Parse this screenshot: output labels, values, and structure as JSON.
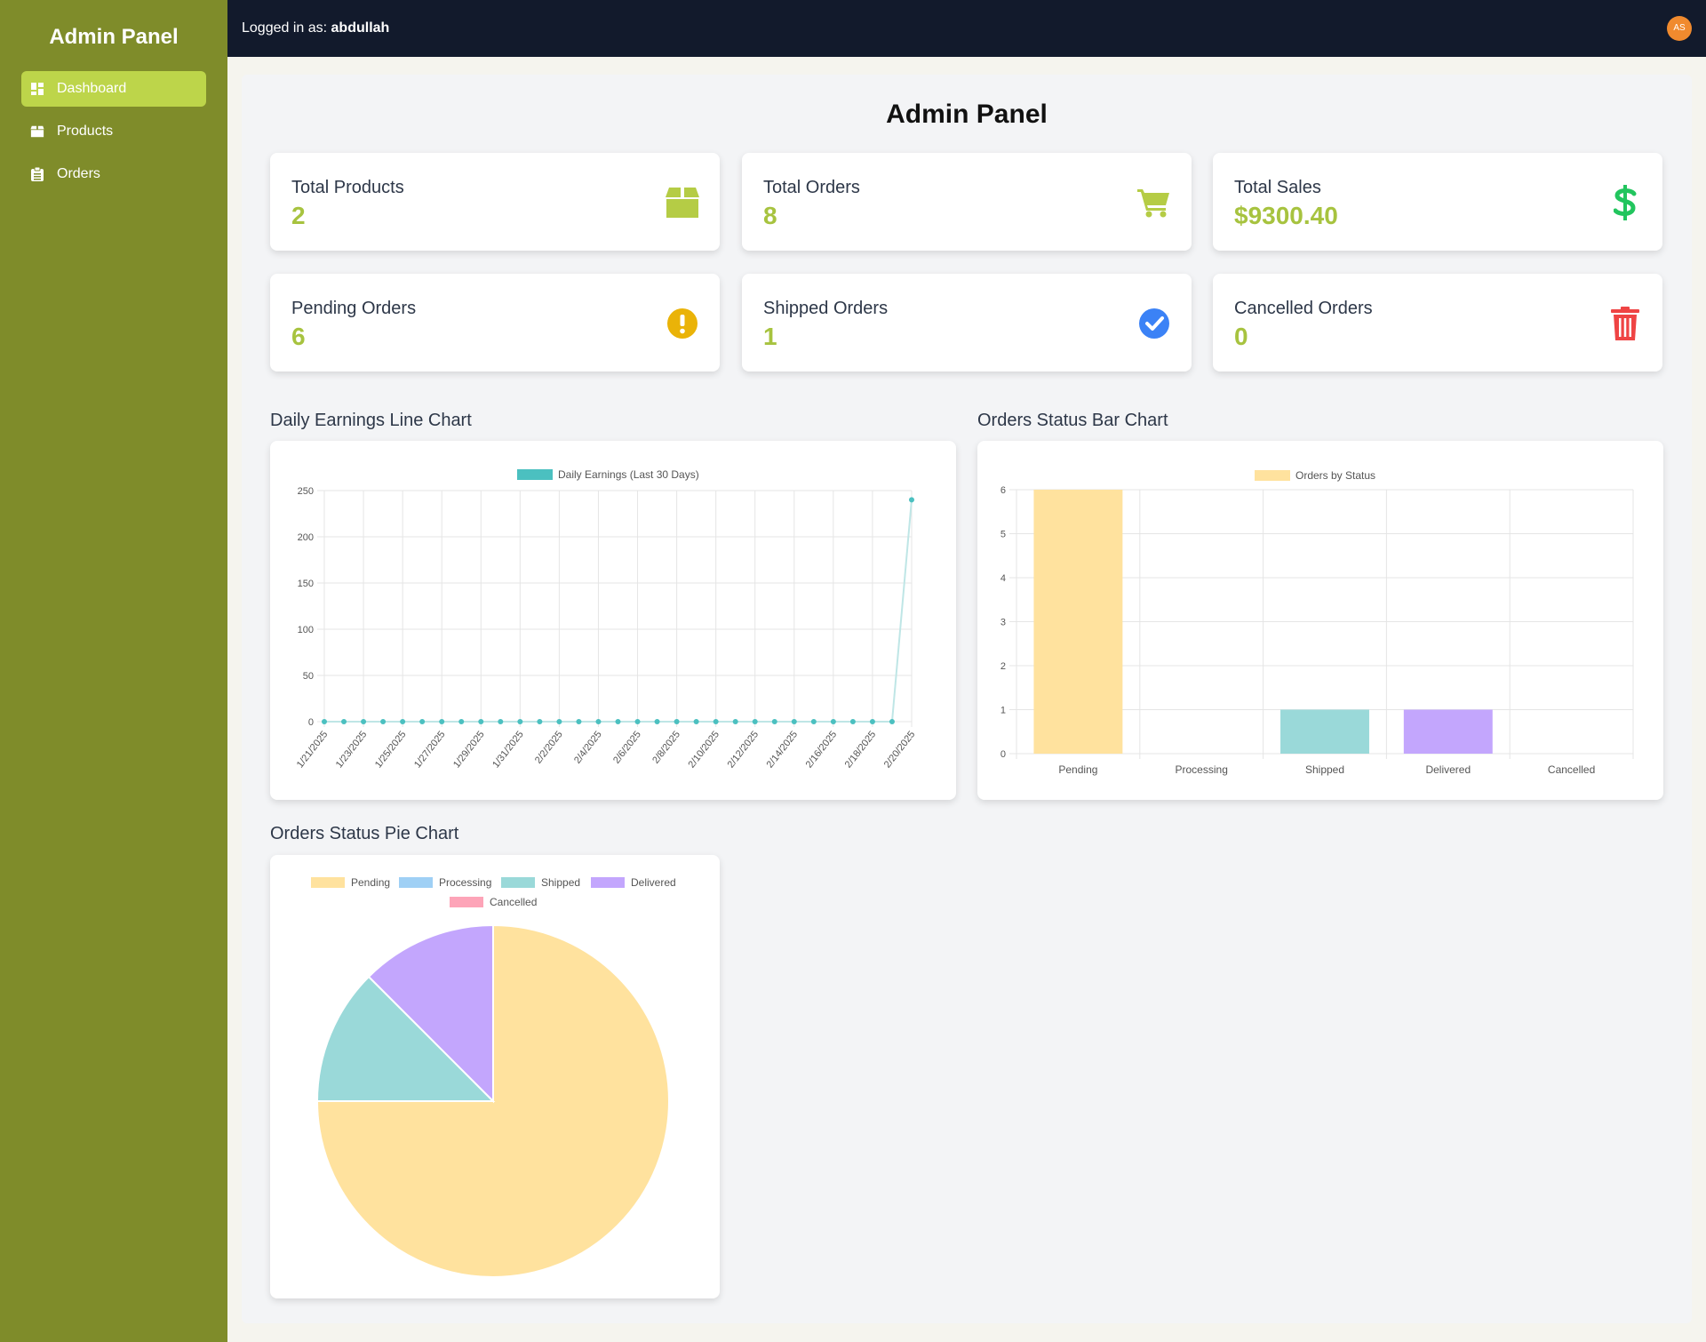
{
  "sidebar": {
    "brand": "Admin Panel",
    "items": [
      {
        "label": "Dashboard",
        "icon": "dashboard-icon",
        "active": true
      },
      {
        "label": "Products",
        "icon": "box-icon",
        "active": false
      },
      {
        "label": "Orders",
        "icon": "clipboard-icon",
        "active": false
      }
    ]
  },
  "topbar": {
    "logged_in_prefix": "Logged in as:",
    "username": "abdullah",
    "avatar_initials": "AS"
  },
  "main": {
    "title": "Admin Panel"
  },
  "stats": [
    {
      "label": "Total Products",
      "value": "2",
      "icon": "box-icon",
      "color": "#b5cc45"
    },
    {
      "label": "Total Orders",
      "value": "8",
      "icon": "cart-icon",
      "color": "#b5cc45"
    },
    {
      "label": "Total Sales",
      "value": "$9300.40",
      "icon": "dollar-icon",
      "color": "#22c55e"
    },
    {
      "label": "Pending Orders",
      "value": "6",
      "icon": "exclamation-icon",
      "color": "#eab308"
    },
    {
      "label": "Shipped Orders",
      "value": "1",
      "icon": "check-circle-icon",
      "color": "#3b82f6"
    },
    {
      "label": "Cancelled Orders",
      "value": "0",
      "icon": "trash-icon",
      "color": "#ef4444"
    }
  ],
  "sections": {
    "line_title": "Daily Earnings Line Chart",
    "bar_title": "Orders Status Bar Chart",
    "pie_title": "Orders Status Pie Chart"
  },
  "colors": {
    "sidebar": "#7f8c2a",
    "active": "#bdd54a",
    "topbar": "#121a2c",
    "accent_value": "#a7c33f"
  },
  "chart_data": [
    {
      "type": "line",
      "legend": "Daily Earnings (Last 30 Days)",
      "x": [
        "1/21/2025",
        "1/22/2025",
        "1/23/2025",
        "1/24/2025",
        "1/25/2025",
        "1/26/2025",
        "1/27/2025",
        "1/28/2025",
        "1/29/2025",
        "1/30/2025",
        "1/31/2025",
        "2/1/2025",
        "2/2/2025",
        "2/3/2025",
        "2/4/2025",
        "2/5/2025",
        "2/6/2025",
        "2/7/2025",
        "2/8/2025",
        "2/9/2025",
        "2/10/2025",
        "2/11/2025",
        "2/12/2025",
        "2/13/2025",
        "2/14/2025",
        "2/15/2025",
        "2/16/2025",
        "2/17/2025",
        "2/18/2025",
        "2/19/2025",
        "2/20/2025"
      ],
      "tick_labels": [
        "1/21/2025",
        "1/23/2025",
        "1/25/2025",
        "1/27/2025",
        "1/29/2025",
        "1/31/2025",
        "2/2/2025",
        "2/4/2025",
        "2/6/2025",
        "2/8/2025",
        "2/10/2025",
        "2/12/2025",
        "2/14/2025",
        "2/16/2025",
        "2/18/2025",
        "2/20/2025"
      ],
      "values": [
        0,
        0,
        0,
        0,
        0,
        0,
        0,
        0,
        0,
        0,
        0,
        0,
        0,
        0,
        0,
        0,
        0,
        0,
        0,
        0,
        0,
        0,
        0,
        0,
        0,
        0,
        0,
        0,
        0,
        0,
        240
      ],
      "yticks": [
        0,
        50,
        100,
        150,
        200,
        250
      ],
      "ylim": [
        0,
        250
      ],
      "color": "#4bc0c0",
      "grid": true,
      "legend_position": "top"
    },
    {
      "type": "bar",
      "legend": "Orders by Status",
      "categories": [
        "Pending",
        "Processing",
        "Shipped",
        "Delivered",
        "Cancelled"
      ],
      "values": [
        6,
        0,
        1,
        1,
        0
      ],
      "colors": [
        "#ffe29e",
        "#9fd0f5",
        "#9ad9d9",
        "#c3a6fd",
        "#fda4b8"
      ],
      "yticks": [
        0,
        1,
        2,
        3,
        4,
        5,
        6
      ],
      "ylim": [
        0,
        6
      ],
      "grid": true,
      "legend_position": "top"
    },
    {
      "type": "pie",
      "labels": [
        "Pending",
        "Processing",
        "Shipped",
        "Delivered",
        "Cancelled"
      ],
      "values": [
        6,
        0,
        1,
        1,
        0
      ],
      "colors": [
        "#ffe29e",
        "#9fd0f5",
        "#9ad9d9",
        "#c3a6fd",
        "#fda4b8"
      ],
      "legend_position": "top"
    }
  ]
}
